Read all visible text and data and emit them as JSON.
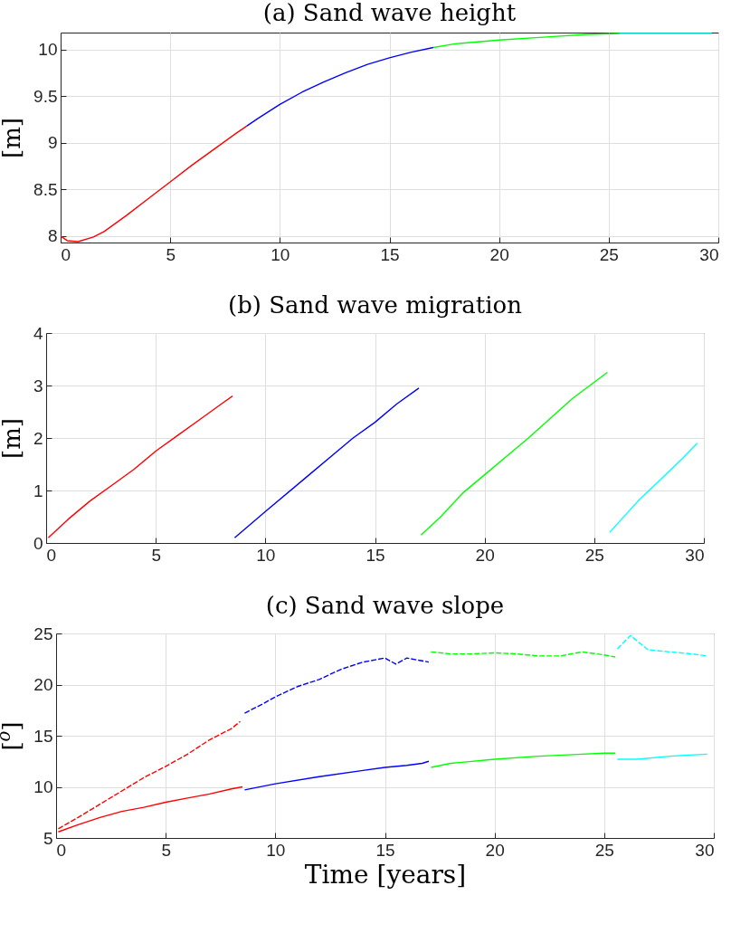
{
  "chart_data": [
    {
      "type": "line",
      "title": "(a) Sand wave height",
      "ylabel": "[m]",
      "xlim": [
        0,
        30
      ],
      "xticks": [
        0,
        5,
        10,
        15,
        20,
        25,
        30
      ],
      "ylim": [
        7.93,
        10.18
      ],
      "yticks": [
        8,
        8.5,
        9,
        9.5,
        10
      ],
      "grid": true,
      "series": [
        {
          "color": "#ff0000",
          "x": [
            0,
            0.3,
            0.8,
            1.5,
            2,
            3,
            4,
            5,
            6,
            7,
            8,
            8.5
          ],
          "values": [
            8.0,
            7.95,
            7.94,
            7.99,
            8.05,
            8.22,
            8.4,
            8.58,
            8.76,
            8.93,
            9.1,
            9.18
          ]
        },
        {
          "color": "#0000ff",
          "x": [
            8.5,
            9,
            10,
            11,
            12,
            13,
            14,
            15,
            16,
            17
          ],
          "values": [
            9.18,
            9.26,
            9.41,
            9.54,
            9.65,
            9.75,
            9.84,
            9.91,
            9.97,
            10.02
          ]
        },
        {
          "color": "#00ff00",
          "x": [
            17,
            18,
            20,
            22,
            24,
            25.5
          ],
          "values": [
            10.02,
            10.06,
            10.1,
            10.13,
            10.16,
            10.17
          ]
        },
        {
          "color": "#00ffff",
          "x": [
            25.5,
            27,
            29.7
          ],
          "values": [
            10.17,
            10.17,
            10.17
          ]
        }
      ]
    },
    {
      "type": "line",
      "title": "(b) Sand wave migration",
      "ylabel": "[m]",
      "xlim": [
        0,
        30
      ],
      "xticks": [
        0,
        5,
        10,
        15,
        20,
        25,
        30
      ],
      "ylim": [
        0,
        4
      ],
      "yticks": [
        0,
        1,
        2,
        3,
        4
      ],
      "grid": true,
      "series": [
        {
          "color": "#ff0000",
          "x": [
            0.1,
            1,
            2,
            3,
            4,
            5,
            6,
            7,
            8,
            8.5
          ],
          "values": [
            0.1,
            0.45,
            0.8,
            1.1,
            1.4,
            1.75,
            2.05,
            2.35,
            2.65,
            2.8
          ]
        },
        {
          "color": "#0000ff",
          "x": [
            8.6,
            10,
            12,
            14,
            15,
            16,
            17
          ],
          "values": [
            0.1,
            0.6,
            1.3,
            2.0,
            2.3,
            2.65,
            2.95
          ]
        },
        {
          "color": "#00ff00",
          "x": [
            17.1,
            18,
            19,
            20,
            22,
            24,
            25.6
          ],
          "values": [
            0.15,
            0.5,
            0.95,
            1.3,
            2.0,
            2.75,
            3.25
          ]
        },
        {
          "color": "#00ffff",
          "x": [
            25.7,
            27,
            28,
            29,
            29.7
          ],
          "values": [
            0.2,
            0.8,
            1.2,
            1.6,
            1.9
          ]
        }
      ]
    },
    {
      "type": "line",
      "title": "(c) Sand wave slope",
      "xlabel": "Time [years]",
      "ylabel": "[$^{o}$]",
      "xlim": [
        0,
        30
      ],
      "xticks": [
        0,
        5,
        10,
        15,
        20,
        25,
        30
      ],
      "ylim": [
        5,
        25
      ],
      "yticks": [
        5,
        10,
        15,
        20,
        25
      ],
      "grid": true,
      "series": [
        {
          "color": "#ff0000",
          "x": [
            0.1,
            1,
            2,
            3,
            4,
            5,
            6,
            7,
            8,
            8.5
          ],
          "values": [
            5.6,
            6.3,
            7.0,
            7.6,
            8.0,
            8.5,
            8.9,
            9.3,
            9.8,
            10.0
          ]
        },
        {
          "color": "#0000ff",
          "x": [
            8.6,
            10,
            12,
            14,
            15,
            16,
            16.7,
            17
          ],
          "values": [
            9.7,
            10.3,
            11.0,
            11.6,
            11.9,
            12.1,
            12.3,
            12.5
          ]
        },
        {
          "color": "#00ff00",
          "x": [
            17.1,
            18,
            20,
            22,
            24,
            25,
            25.5
          ],
          "values": [
            11.9,
            12.3,
            12.7,
            13.0,
            13.2,
            13.3,
            13.3
          ]
        },
        {
          "color": "#00ffff",
          "x": [
            25.6,
            26.5,
            28,
            29.7
          ],
          "values": [
            12.7,
            12.7,
            13.0,
            13.2
          ]
        },
        {
          "color": "#ff0000",
          "line_style": "dashed",
          "x": [
            0.1,
            1,
            2,
            3,
            4,
            5,
            6,
            7,
            8,
            8.4
          ],
          "values": [
            5.9,
            7.0,
            8.3,
            9.6,
            10.9,
            12.0,
            13.2,
            14.6,
            15.7,
            16.4
          ]
        },
        {
          "color": "#0000ff",
          "line_style": "dashed",
          "x": [
            8.6,
            9.5,
            10,
            11,
            12,
            13,
            14,
            15,
            15.5,
            16,
            17
          ],
          "values": [
            17.2,
            18.2,
            18.8,
            19.8,
            20.5,
            21.5,
            22.2,
            22.6,
            22.0,
            22.6,
            22.2
          ]
        },
        {
          "color": "#00ff00",
          "line_style": "dashed",
          "x": [
            17.1,
            18,
            19,
            20,
            21,
            22,
            23,
            24,
            25,
            25.5
          ],
          "values": [
            23.2,
            23.0,
            23.0,
            23.1,
            23.0,
            22.8,
            22.8,
            23.2,
            22.9,
            22.7
          ]
        },
        {
          "color": "#00ffff",
          "line_style": "dashed",
          "x": [
            25.6,
            26.2,
            27,
            28,
            29,
            29.7
          ],
          "values": [
            23.5,
            24.8,
            23.4,
            23.2,
            23.0,
            22.8
          ]
        }
      ]
    }
  ]
}
